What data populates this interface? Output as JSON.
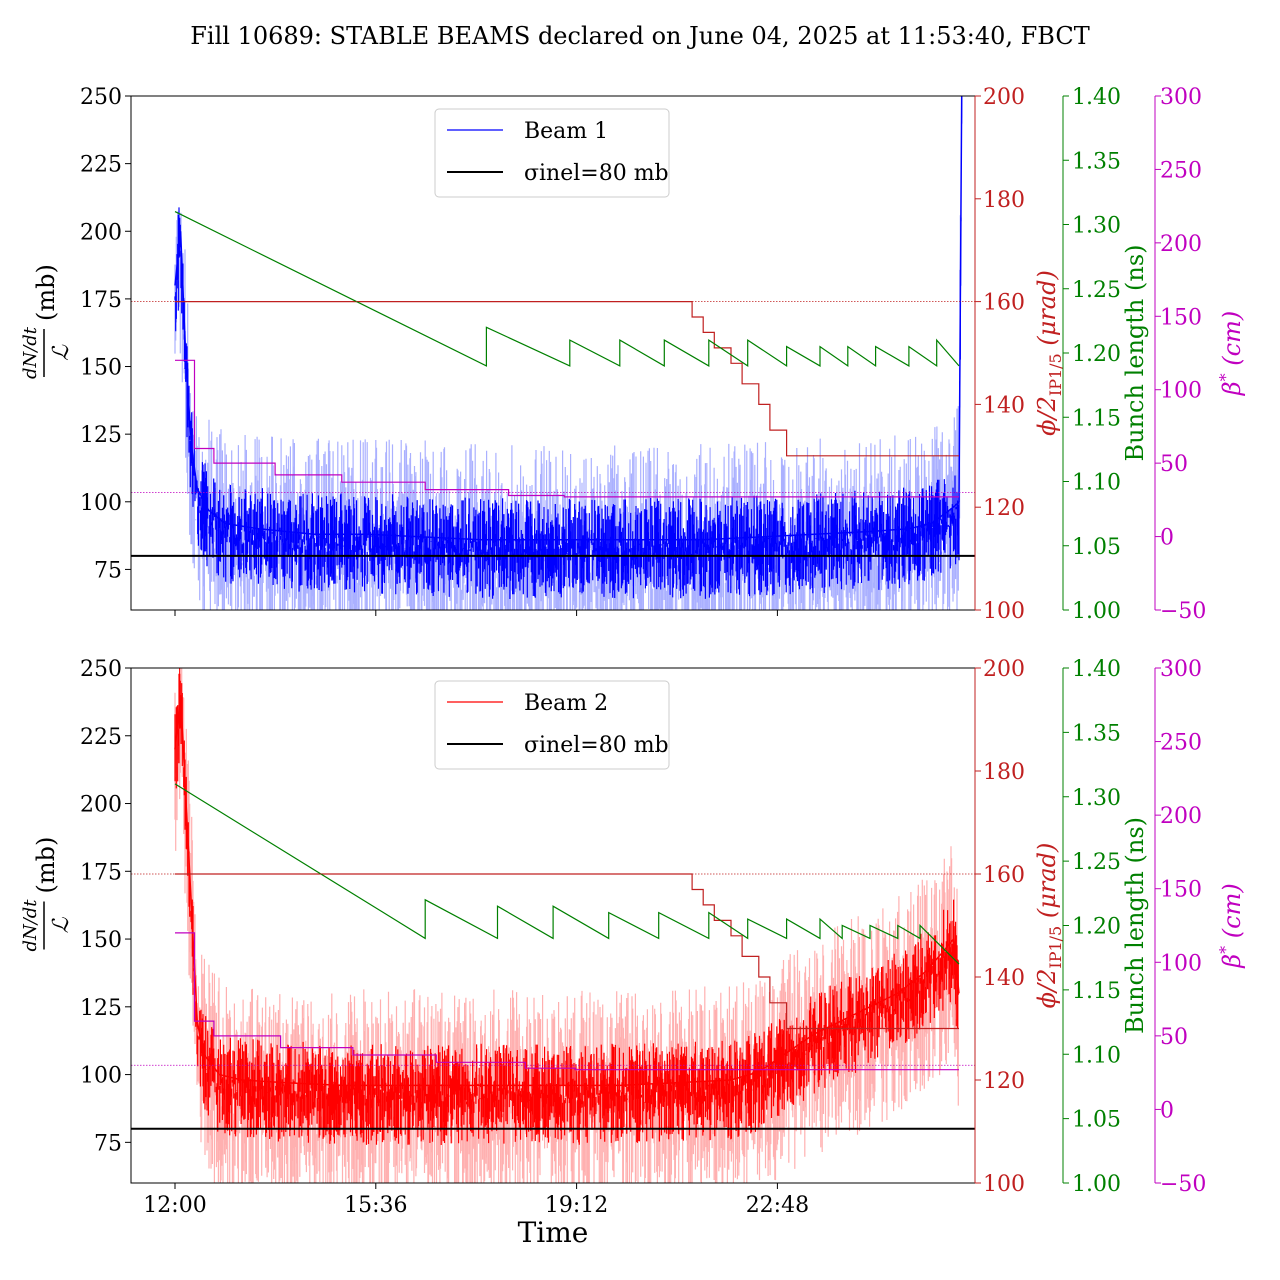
{
  "title": "Fill 10689: STABLE BEAMS declared on June 04, 2025 at 11:53:40, FBCT",
  "colors": {
    "beam1": "#0000ff",
    "beam1_light": "#aab0ff",
    "beam2": "#ff0000",
    "beam2_light": "#ffb0b0",
    "crossing_angle": "#c02020",
    "bunch_length": "#008000",
    "beta_star": "#c000c0",
    "reference": "#000000"
  },
  "chart_data": [
    {
      "type": "line",
      "panel": "top",
      "ylabel": "dN/dt / ℒ (mb)",
      "ylabel_num": "dN/dt",
      "ylabel_den": "ℒ",
      "ylabel_unit": "(mb)",
      "ylim": [
        60,
        250
      ],
      "y_ticks": [
        "75",
        "100",
        "125",
        "150",
        "175",
        "200",
        "225",
        "250"
      ],
      "x_ticks": [
        "12:00",
        "15:36",
        "19:12",
        "22:48"
      ],
      "legend": {
        "placement": "upper-center",
        "entries": [
          "Beam 1",
          "σinel=80 mb"
        ]
      },
      "series": [
        {
          "name": "Beam 1",
          "axis": "left",
          "x_hours": [
            0.0,
            0.1,
            0.2,
            0.3,
            0.4,
            0.6,
            0.9,
            1.5,
            2.5,
            3.5,
            4.5,
            5.5,
            6.5,
            7.5,
            8.5,
            9.5,
            10.5,
            11.5,
            12.5,
            13.2,
            13.6,
            13.8,
            14.0,
            14.1,
            14.15
          ],
          "values": [
            180,
            200,
            150,
            120,
            105,
            97,
            92,
            90,
            88,
            88,
            87,
            86,
            86,
            86,
            86,
            86,
            87,
            88,
            89,
            90,
            92,
            95,
            98,
            100,
            250
          ]
        },
        {
          "name": "σinel=80 mb",
          "axis": "left",
          "constant": 80
        },
        {
          "name": "crossing angle",
          "axis": "crossing",
          "x_hours": [
            0.0,
            0.3,
            0.3,
            0.6,
            0.6,
            1.0,
            1.0,
            2.0,
            2.0,
            3.5,
            3.5,
            5.0,
            5.0,
            6.5,
            6.5,
            9.3,
            9.3,
            9.5,
            9.5,
            9.7,
            9.7,
            10.0,
            10.0,
            10.2,
            10.2,
            10.5,
            10.5,
            10.7,
            10.7,
            11.0,
            11.0,
            14.1
          ],
          "values": [
            160,
            160,
            160,
            160,
            160,
            160,
            160,
            160,
            160,
            160,
            160,
            160,
            160,
            160,
            160,
            160,
            157,
            157,
            154,
            154,
            151,
            151,
            148,
            148,
            144,
            144,
            140,
            140,
            135,
            135,
            130,
            130
          ]
        },
        {
          "name": "bunch length",
          "axis": "bunch",
          "x_hours": [
            0.0,
            5.6,
            5.6,
            7.1,
            7.1,
            8.0,
            8.0,
            8.8,
            8.8,
            9.6,
            9.6,
            10.3,
            10.3,
            11.0,
            11.0,
            11.6,
            11.6,
            12.1,
            12.1,
            12.6,
            12.6,
            13.2,
            13.2,
            13.7,
            13.7,
            14.1
          ],
          "values": [
            1.31,
            1.19,
            1.22,
            1.19,
            1.21,
            1.19,
            1.21,
            1.19,
            1.21,
            1.19,
            1.21,
            1.19,
            1.21,
            1.19,
            1.205,
            1.19,
            1.205,
            1.19,
            1.205,
            1.19,
            1.205,
            1.19,
            1.205,
            1.19,
            1.21,
            1.19
          ]
        },
        {
          "name": "beta star",
          "axis": "beta",
          "x_hours": [
            0.0,
            0.35,
            0.35,
            0.7,
            0.7,
            1.8,
            1.8,
            3.0,
            3.0,
            4.5,
            4.5,
            6.0,
            6.0,
            7.0,
            7.0,
            14.1
          ],
          "values": [
            120,
            120,
            60,
            60,
            50,
            50,
            42,
            42,
            37,
            37,
            32,
            32,
            28,
            28,
            27,
            27
          ]
        }
      ]
    },
    {
      "type": "line",
      "panel": "bottom",
      "ylabel": "dN/dt / ℒ (mb)",
      "ylabel_num": "dN/dt",
      "ylabel_den": "ℒ",
      "ylabel_unit": "(mb)",
      "ylim": [
        60,
        250
      ],
      "y_ticks": [
        "75",
        "100",
        "125",
        "150",
        "175",
        "200",
        "225",
        "250"
      ],
      "x_ticks": [
        "12:00",
        "15:36",
        "19:12",
        "22:48"
      ],
      "xlabel": "Time",
      "legend": {
        "placement": "upper-center",
        "entries": [
          "Beam 2",
          "σinel=80 mb"
        ]
      },
      "series": [
        {
          "name": "Beam 2",
          "axis": "left",
          "x_hours": [
            0.0,
            0.1,
            0.2,
            0.3,
            0.4,
            0.5,
            0.8,
            1.2,
            2.0,
            3.0,
            4.0,
            5.0,
            6.0,
            7.0,
            8.0,
            9.0,
            10.0,
            10.5,
            11.0,
            11.5,
            12.0,
            12.5,
            13.0,
            13.5,
            13.8,
            14.0,
            14.1
          ],
          "values": [
            220,
            240,
            200,
            160,
            120,
            108,
            100,
            98,
            97,
            96,
            96,
            96,
            96,
            96,
            96,
            97,
            98,
            101,
            108,
            115,
            120,
            125,
            130,
            138,
            145,
            150,
            130
          ]
        },
        {
          "name": "σinel=80 mb",
          "axis": "left",
          "constant": 80
        },
        {
          "name": "crossing angle",
          "axis": "crossing",
          "x_hours": [
            0.0,
            9.3,
            9.3,
            9.5,
            9.5,
            9.7,
            9.7,
            10.0,
            10.0,
            10.2,
            10.2,
            10.5,
            10.5,
            10.7,
            10.7,
            11.0,
            11.0,
            14.1
          ],
          "values": [
            160,
            160,
            157,
            157,
            154,
            154,
            151,
            151,
            148,
            148,
            144,
            144,
            140,
            140,
            135,
            135,
            130,
            130
          ]
        },
        {
          "name": "bunch length",
          "axis": "bunch",
          "x_hours": [
            0.0,
            4.5,
            4.5,
            5.8,
            5.8,
            6.8,
            6.8,
            7.8,
            7.8,
            8.7,
            8.7,
            9.6,
            9.6,
            10.3,
            10.3,
            11.0,
            11.0,
            11.6,
            11.6,
            12.0,
            12.0,
            12.5,
            12.5,
            13.0,
            13.0,
            13.4,
            13.4,
            14.1
          ],
          "values": [
            1.31,
            1.19,
            1.22,
            1.19,
            1.215,
            1.19,
            1.215,
            1.19,
            1.21,
            1.19,
            1.21,
            1.19,
            1.21,
            1.19,
            1.205,
            1.19,
            1.205,
            1.19,
            1.205,
            1.19,
            1.2,
            1.19,
            1.2,
            1.19,
            1.2,
            1.19,
            1.2,
            1.17
          ]
        },
        {
          "name": "beta star",
          "axis": "beta",
          "x_hours": [
            0.0,
            0.35,
            0.35,
            0.7,
            0.7,
            1.9,
            1.9,
            3.2,
            3.2,
            4.7,
            4.7,
            6.3,
            6.3,
            7.2,
            7.2,
            14.1
          ],
          "values": [
            120,
            120,
            60,
            60,
            50,
            50,
            42,
            42,
            37,
            37,
            32,
            32,
            28,
            28,
            27,
            27
          ]
        }
      ]
    }
  ],
  "right_axes": {
    "crossing": {
      "label": "ϕ/2IP1/5 (μrad)",
      "label_main": "ϕ/2",
      "label_sub": "IP1/5",
      "label_unit": "(μrad)",
      "ylim": [
        100,
        200
      ],
      "ticks": [
        "100",
        "120",
        "140",
        "160",
        "180",
        "200"
      ],
      "reference": 160
    },
    "bunch": {
      "label": "Bunch length (ns)",
      "ylim": [
        1.0,
        1.4
      ],
      "ticks": [
        "1.00",
        "1.05",
        "1.10",
        "1.15",
        "1.20",
        "1.25",
        "1.30",
        "1.35",
        "1.40"
      ]
    },
    "beta": {
      "label": "β* (cm)",
      "label_main": "β",
      "label_sup": "*",
      "label_unit": "(cm)",
      "ylim": [
        -50,
        300
      ],
      "ticks": [
        "−50",
        "0",
        "50",
        "100",
        "150",
        "200",
        "250",
        "300"
      ],
      "reference": 30
    }
  }
}
